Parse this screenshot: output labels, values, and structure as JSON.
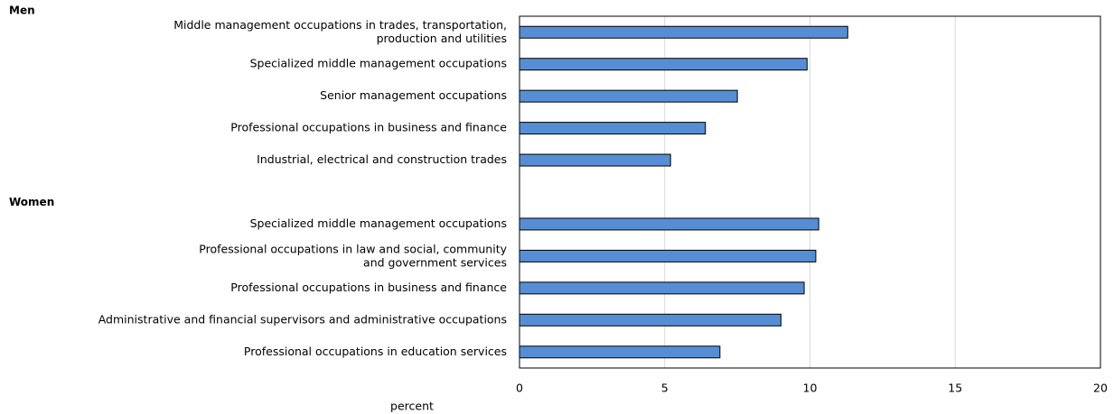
{
  "chart_data": {
    "type": "bar",
    "orientation": "horizontal",
    "color": "#558ed5",
    "groups": [
      {
        "name": "Men",
        "categories": [
          "Middle management occupations in trades, transportation,\nproduction and utilities",
          "Specialized middle management occupations",
          "Senior management occupations",
          "Professional occupations in business and finance",
          "Industrial, electrical and construction trades"
        ],
        "values": [
          11.3,
          9.9,
          7.5,
          6.4,
          5.2
        ]
      },
      {
        "name": "Women",
        "categories": [
          "Specialized middle management occupations",
          "Professional occupations in law and social, community\nand government services",
          "Professional occupations in business and finance",
          "Administrative and financial supervisors and administrative occupations",
          "Professional occupations in education services"
        ],
        "values": [
          10.3,
          10.2,
          9.8,
          9.0,
          6.9
        ]
      }
    ],
    "xlabel": "percent",
    "xlim": [
      0,
      20
    ],
    "xticks": [
      0,
      5,
      10,
      15,
      20
    ],
    "grid": true
  }
}
